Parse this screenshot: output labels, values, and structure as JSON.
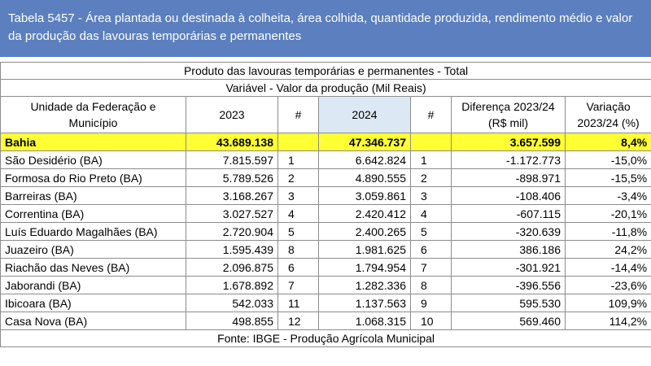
{
  "title": "Tabela 5457 - Área plantada ou destinada à colheita, área colhida, quantidade produzida, rendimento médio e valor da produção das lavouras temporárias e permanentes",
  "band1": "Produto das lavouras temporárias e permanentes - Total",
  "band2": "Variável - Valor da produção (Mil Reais)",
  "columns": {
    "unit": "Unidade da Federação e Município",
    "y2023": "2023",
    "rank2023": "#",
    "y2024": "2024",
    "rank2024": "#",
    "diff": "Diferença 2023/24 (R$ mil)",
    "var": "Variação 2023/24 (%)"
  },
  "state_row": {
    "name": "Bahia",
    "v2023": "43.689.138",
    "r2023": "",
    "v2024": "47.346.737",
    "r2024": "",
    "diff": "3.657.599",
    "var": "8,4%"
  },
  "rows": [
    {
      "name": "São Desidério (BA)",
      "v2023": "7.815.597",
      "r2023": "1",
      "v2024": "6.642.824",
      "r2024": "1",
      "diff": "-1.172.773",
      "var": "-15,0%"
    },
    {
      "name": "Formosa do Rio Preto (BA)",
      "v2023": "5.789.526",
      "r2023": "2",
      "v2024": "4.890.555",
      "r2024": "2",
      "diff": "-898.971",
      "var": "-15,5%"
    },
    {
      "name": "Barreiras (BA)",
      "v2023": "3.168.267",
      "r2023": "3",
      "v2024": "3.059.861",
      "r2024": "3",
      "diff": "-108.406",
      "var": "-3,4%"
    },
    {
      "name": "Correntina (BA)",
      "v2023": "3.027.527",
      "r2023": "4",
      "v2024": "2.420.412",
      "r2024": "4",
      "diff": "-607.115",
      "var": "-20,1%"
    },
    {
      "name": "Luís Eduardo Magalhães (BA)",
      "v2023": "2.720.904",
      "r2023": "5",
      "v2024": "2.400.265",
      "r2024": "5",
      "diff": "-320.639",
      "var": "-11,8%"
    },
    {
      "name": "Juazeiro (BA)",
      "v2023": "1.595.439",
      "r2023": "8",
      "v2024": "1.981.625",
      "r2024": "6",
      "diff": "386.186",
      "var": "24,2%"
    },
    {
      "name": "Riachão das Neves (BA)",
      "v2023": "2.096.875",
      "r2023": "6",
      "v2024": "1.794.954",
      "r2024": "7",
      "diff": "-301.921",
      "var": "-14,4%"
    },
    {
      "name": "Jaborandi (BA)",
      "v2023": "1.678.892",
      "r2023": "7",
      "v2024": "1.282.336",
      "r2024": "8",
      "diff": "-396.556",
      "var": "-23,6%"
    },
    {
      "name": "Ibicoara (BA)",
      "v2023": "542.033",
      "r2023": "11",
      "v2024": "1.137.563",
      "r2024": "9",
      "diff": "595.530",
      "var": "109,9%"
    },
    {
      "name": "Casa Nova (BA)",
      "v2023": "498.855",
      "r2023": "12",
      "v2024": "1.068.315",
      "r2024": "10",
      "diff": "569.460",
      "var": "114,2%"
    }
  ],
  "footer": "Fonte: IBGE - Produção Agrícola Municipal",
  "colors": {
    "header_bg": "#5b7fbf",
    "highlight": "#ffff33",
    "selected_header": "#dce9f5"
  }
}
